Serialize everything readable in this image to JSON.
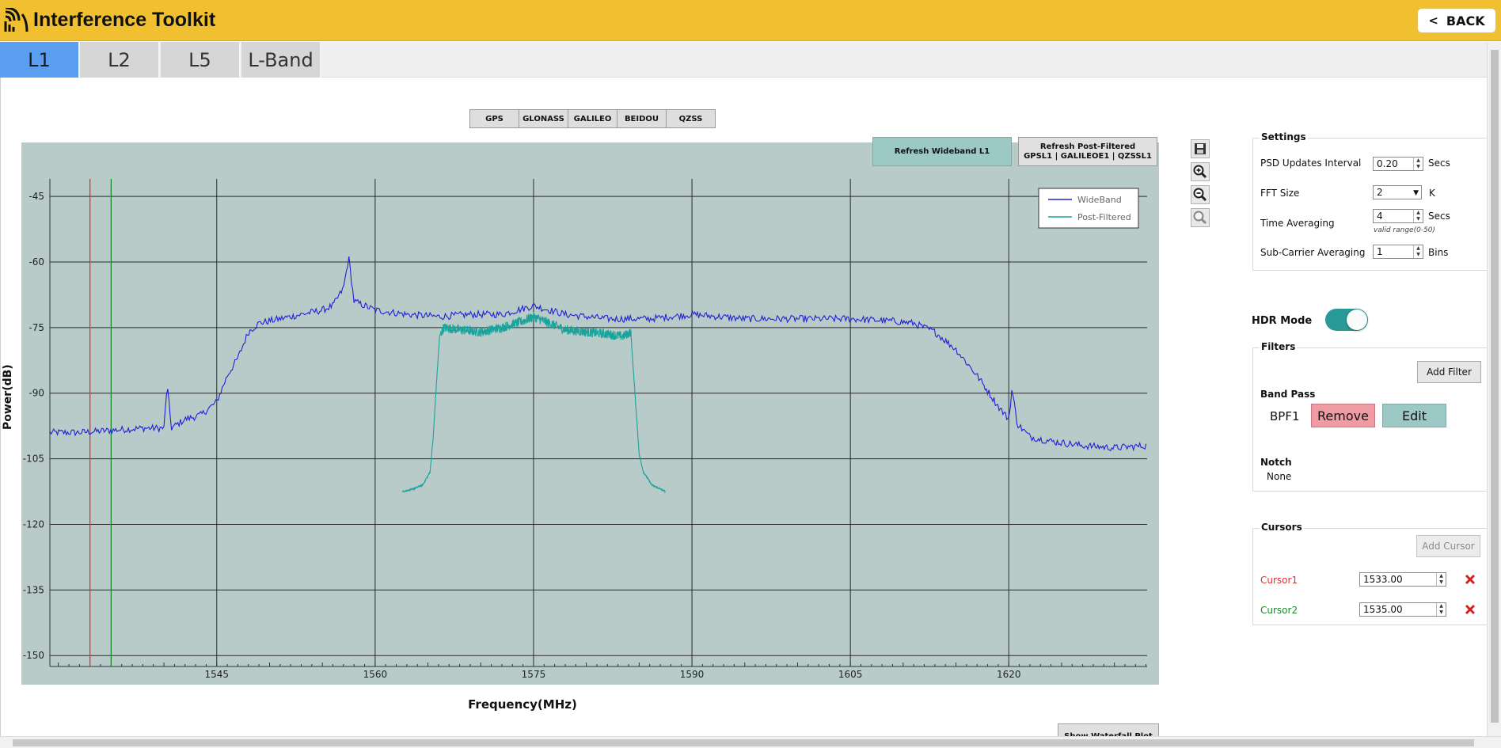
{
  "header": {
    "title": "Interference Toolkit",
    "back_label": "BACK"
  },
  "tabs": [
    {
      "label": "L1",
      "active": true
    },
    {
      "label": "L2",
      "active": false
    },
    {
      "label": "L5",
      "active": false
    },
    {
      "label": "L-Band",
      "active": false
    }
  ],
  "constellations": [
    "GPS",
    "GLONASS",
    "GALILEO",
    "BEIDOU",
    "QZSS"
  ],
  "refresh_wideband_label": "Refresh Wideband L1",
  "refresh_post": {
    "line1": "Refresh Post-Filtered",
    "line2": "GPSL1 | GALILEOE1 | QZSSL1"
  },
  "tools": [
    "save-icon",
    "zoom-in-icon",
    "zoom-out-icon",
    "zoom-reset-icon"
  ],
  "chart_data": {
    "type": "line",
    "xlabel": "Frequency(MHz)",
    "ylabel": "Power(dB)",
    "xlim": [
      1529.2,
      1633.1
    ],
    "ylim": [
      -152.5,
      -41
    ],
    "xticks": [
      1545,
      1560,
      1575,
      1590,
      1605,
      1620
    ],
    "yticks": [
      -45,
      -60,
      -75,
      -90,
      -105,
      -120,
      -135,
      -150
    ],
    "grid": true,
    "legend_position": "top-right",
    "background": "#b8cbc9",
    "cursors": [
      {
        "x": 1533.0,
        "color": "#e03030"
      },
      {
        "x": 1535.0,
        "color": "#1a8a2a"
      }
    ],
    "series": [
      {
        "name": "WideBand",
        "color": "#2020d8",
        "points": [
          [
            1529.2,
            -99
          ],
          [
            1532,
            -99
          ],
          [
            1535,
            -98.5
          ],
          [
            1538,
            -98
          ],
          [
            1539,
            -98
          ],
          [
            1540,
            -98
          ],
          [
            1540.3,
            -88
          ],
          [
            1540.7,
            -98
          ],
          [
            1542,
            -96
          ],
          [
            1543.5,
            -95
          ],
          [
            1545,
            -92
          ],
          [
            1546,
            -86
          ],
          [
            1547,
            -82
          ],
          [
            1548,
            -76
          ],
          [
            1549,
            -74
          ],
          [
            1551,
            -73
          ],
          [
            1553,
            -72
          ],
          [
            1555,
            -71
          ],
          [
            1556,
            -70
          ],
          [
            1557,
            -66
          ],
          [
            1557.5,
            -59
          ],
          [
            1558,
            -69
          ],
          [
            1560,
            -71
          ],
          [
            1563,
            -72
          ],
          [
            1566,
            -72.5
          ],
          [
            1569,
            -72
          ],
          [
            1572,
            -72
          ],
          [
            1575,
            -70
          ],
          [
            1578,
            -72
          ],
          [
            1582,
            -73
          ],
          [
            1586,
            -73
          ],
          [
            1590,
            -72
          ],
          [
            1595,
            -73
          ],
          [
            1600,
            -73
          ],
          [
            1605,
            -73
          ],
          [
            1609,
            -73.5
          ],
          [
            1611,
            -74
          ],
          [
            1613,
            -76
          ],
          [
            1615,
            -80
          ],
          [
            1617,
            -86
          ],
          [
            1619,
            -93
          ],
          [
            1620,
            -96
          ],
          [
            1620.3,
            -89
          ],
          [
            1620.8,
            -97
          ],
          [
            1622,
            -100
          ],
          [
            1624,
            -101
          ],
          [
            1627,
            -102
          ],
          [
            1630,
            -102.5
          ],
          [
            1633.1,
            -102
          ]
        ]
      },
      {
        "name": "Post-Filtered",
        "color": "#1aa39c",
        "points": [
          [
            1562.6,
            -112.5
          ],
          [
            1563.5,
            -112
          ],
          [
            1564.5,
            -111
          ],
          [
            1565.2,
            -108
          ],
          [
            1565.5,
            -100
          ],
          [
            1565.8,
            -88
          ],
          [
            1566.1,
            -77
          ],
          [
            1566.5,
            -75
          ],
          [
            1568,
            -75.5
          ],
          [
            1570,
            -76
          ],
          [
            1572,
            -75
          ],
          [
            1574,
            -73.5
          ],
          [
            1575,
            -72.5
          ],
          [
            1576.5,
            -74
          ],
          [
            1578,
            -75.5
          ],
          [
            1580,
            -76
          ],
          [
            1582,
            -76.5
          ],
          [
            1583.5,
            -77
          ],
          [
            1584.2,
            -76
          ],
          [
            1584.6,
            -90
          ],
          [
            1585,
            -104
          ],
          [
            1585.4,
            -108
          ],
          [
            1586.2,
            -111
          ],
          [
            1587.5,
            -112.5
          ]
        ]
      }
    ]
  },
  "waterfall_partial_label": "Show Waterfall Plot",
  "settings": {
    "title": "Settings",
    "psd_label": "PSD Updates Interval",
    "psd_value": "0.20",
    "psd_unit": "Secs",
    "fft_label": "FFT Size",
    "fft_value": "2",
    "fft_unit": "K",
    "time_avg_label": "Time Averaging",
    "time_avg_value": "4",
    "time_avg_unit": "Secs",
    "time_avg_hint": "valid range(0-50)",
    "subcarrier_label": "Sub-Carrier Averaging",
    "subcarrier_value": "1",
    "subcarrier_unit": "Bins"
  },
  "hdr": {
    "label": "HDR Mode",
    "on": true
  },
  "filters": {
    "title": "Filters",
    "add_label": "Add Filter",
    "bandpass_label": "Band Pass",
    "bpf_name": "BPF1",
    "remove_label": "Remove",
    "edit_label": "Edit",
    "notch_label": "Notch",
    "notch_value": "None"
  },
  "cursors_panel": {
    "title": "Cursors",
    "add_label": "Add Cursor",
    "items": [
      {
        "label": "Cursor1",
        "value": "1533.00",
        "color": "#e03030"
      },
      {
        "label": "Cursor2",
        "value": "1535.00",
        "color": "#1a8a2a"
      }
    ]
  }
}
